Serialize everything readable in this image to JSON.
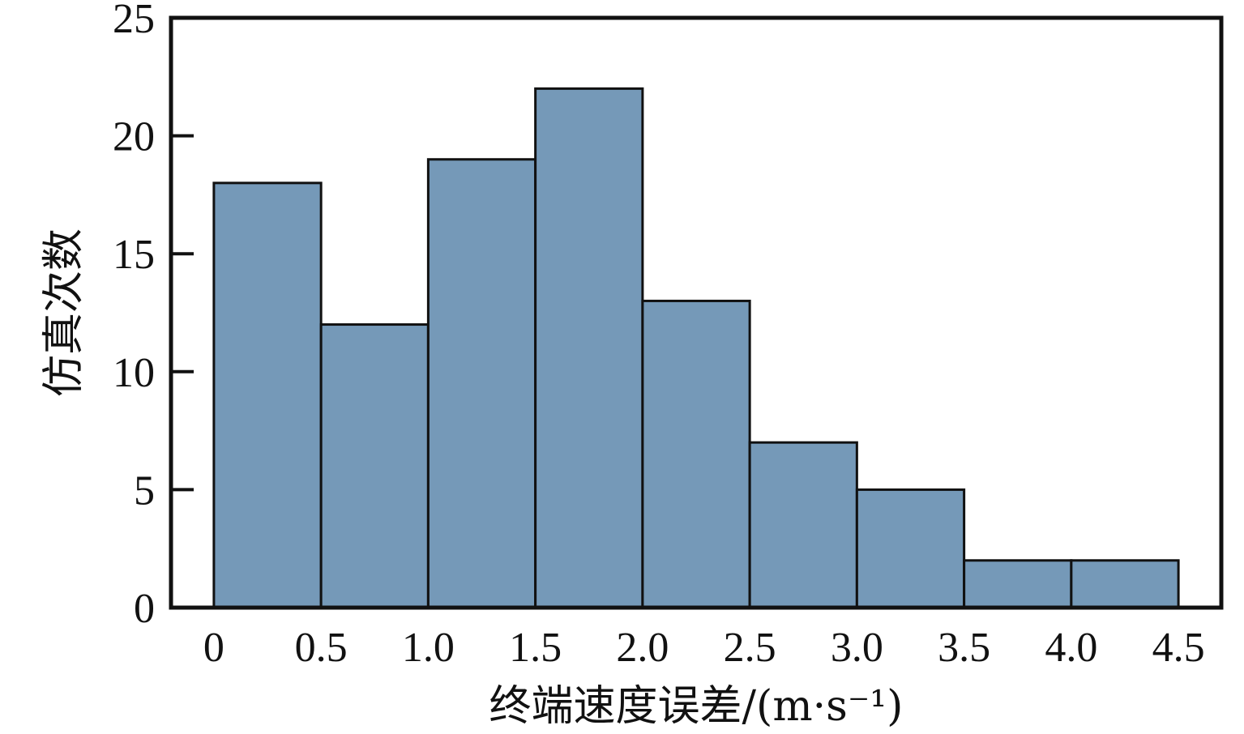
{
  "chart_data": {
    "type": "bar",
    "title": "",
    "xlabel": "终端速度误差/(m·s⁻¹)",
    "ylabel": "仿真次数",
    "bin_edges": [
      0,
      0.5,
      1.0,
      1.5,
      2.0,
      2.5,
      3.0,
      3.5,
      4.0,
      4.5
    ],
    "values": [
      18,
      12,
      19,
      22,
      13,
      7,
      5,
      2,
      2
    ],
    "xlim": [
      -0.2,
      4.7
    ],
    "ylim": [
      0,
      25
    ],
    "x_ticks": [
      "0",
      "0.5",
      "1.0",
      "1.5",
      "2.0",
      "2.5",
      "3.0",
      "3.5",
      "4.0",
      "4.5"
    ],
    "y_ticks": [
      "0",
      "5",
      "10",
      "15",
      "20",
      "25"
    ],
    "grid": false,
    "colors": {
      "bar_fill": "#7599b8",
      "bar_edge": "#111111",
      "frame": "#111111"
    }
  }
}
